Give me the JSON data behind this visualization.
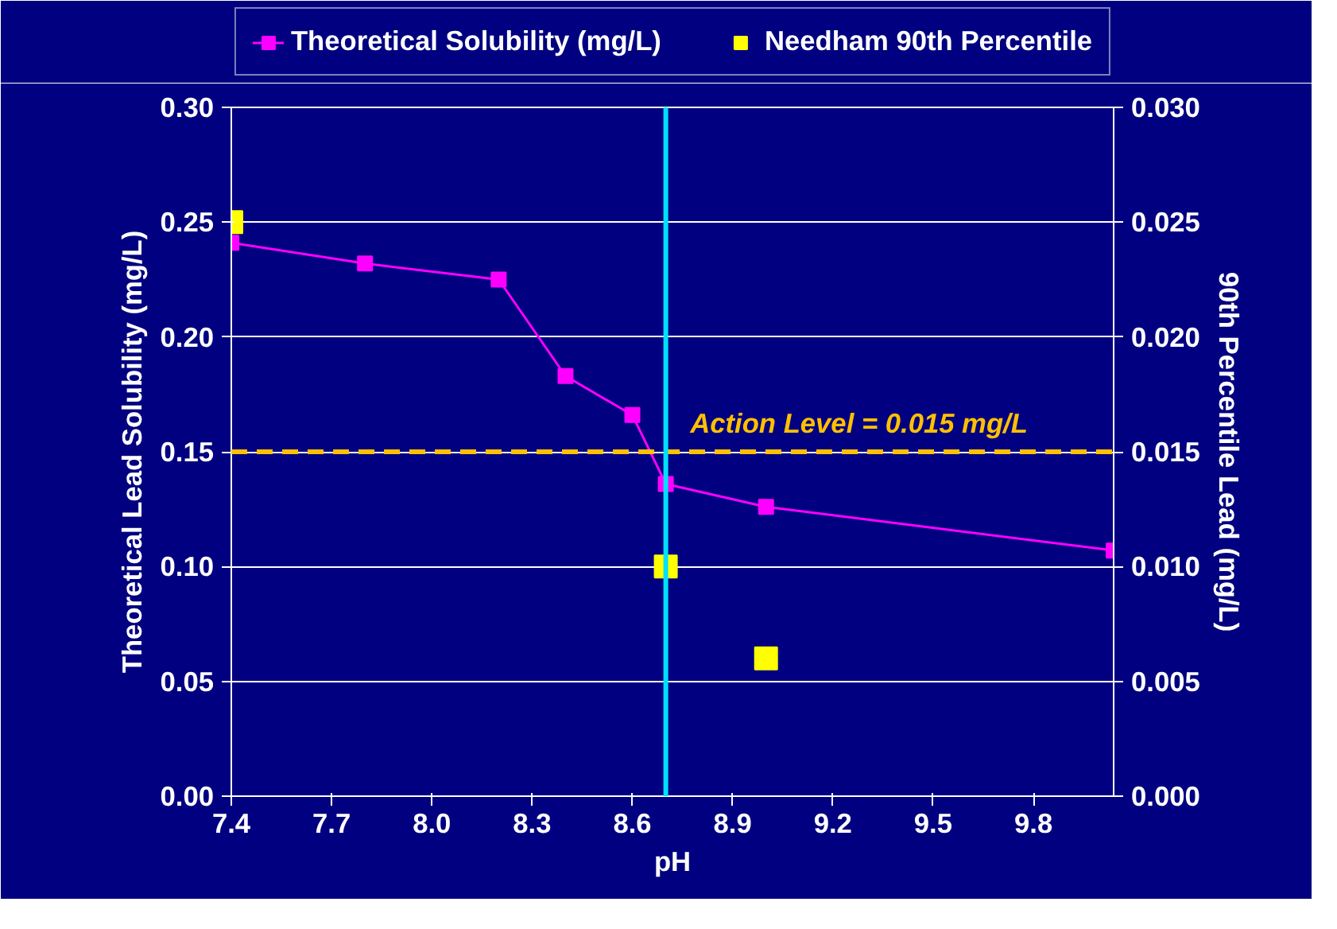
{
  "chart_data": {
    "type": "line",
    "xlabel": "pH",
    "ylabel": "Theoretical Lead Solubility (mg/L)",
    "y2label": "90th Percentile Lead (mg/L)",
    "xlim": [
      7.4,
      10.04
    ],
    "xticks": [
      7.4,
      7.7,
      {
        "value": 8.0,
        "label": "8.0"
      },
      8.3,
      8.6,
      8.9,
      9.2,
      9.5,
      9.8
    ],
    "ylim": [
      0,
      0.3
    ],
    "yticks": [
      {
        "value": 0,
        "label": "0.00"
      },
      {
        "value": 0.05,
        "label": "0.05"
      },
      {
        "value": 0.1,
        "label": "0.10"
      },
      {
        "value": 0.15,
        "label": "0.15"
      },
      {
        "value": 0.2,
        "label": "0.20"
      },
      {
        "value": 0.25,
        "label": "0.25"
      },
      {
        "value": 0.3,
        "label": "0.30"
      }
    ],
    "y2lim": [
      0,
      0.03
    ],
    "y2ticks": [
      {
        "value": 0,
        "label": "0.000"
      },
      {
        "value": 0.005,
        "label": "0.005"
      },
      {
        "value": 0.01,
        "label": "0.010"
      },
      {
        "value": 0.015,
        "label": "0.015"
      },
      {
        "value": 0.02,
        "label": "0.020"
      },
      {
        "value": 0.025,
        "label": "0.025"
      },
      {
        "value": 0.03,
        "label": "0.030"
      }
    ],
    "grid": "y",
    "legend": "top",
    "series": [
      {
        "name": "Theoretical Solubility (mg/L)",
        "color": "#ff00ff",
        "marker": "square",
        "x": [
          7.4,
          7.8,
          8.2,
          8.4,
          8.6,
          8.7,
          9.0,
          10.04
        ],
        "values": [
          0.241,
          0.232,
          0.225,
          0.183,
          0.166,
          0.136,
          0.126,
          0.107
        ]
      },
      {
        "name": "Needham 90th Percentile",
        "type": "scatter",
        "color": "#ffff00",
        "marker": "square",
        "axis": "y2",
        "x": [
          7.4,
          8.7,
          9.0
        ],
        "values": [
          0.025,
          0.01,
          0.006
        ]
      }
    ],
    "ref_lines": [
      {
        "axis": "y2",
        "value": 0.015,
        "label": "Action Level = 0.015 mg/L",
        "color": "#ffc000",
        "line_style": "dashed"
      },
      {
        "axis": "x",
        "value": 8.7,
        "label": null,
        "color": "#00e0ff",
        "line_style": "solid"
      }
    ]
  }
}
